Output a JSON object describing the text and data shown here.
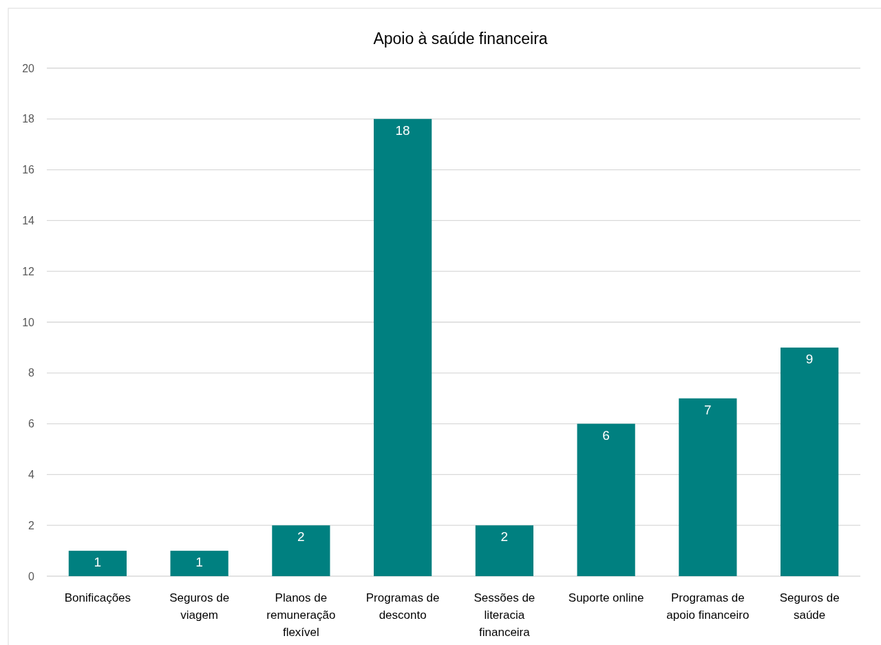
{
  "chart_data": {
    "type": "bar",
    "title": "Apoio à saúde financeira",
    "categories": [
      "Bonificações",
      "Seguros de viagem",
      "Planos de remuneração flexível",
      "Programas de desconto",
      "Sessões de literacia financeira",
      "Suporte online",
      "Programas de apoio financeiro",
      "Seguros de saúde"
    ],
    "values": [
      1,
      1,
      2,
      18,
      2,
      6,
      7,
      9
    ],
    "color": "#008080",
    "ylim": [
      0,
      20
    ],
    "yticks": [
      0,
      2,
      4,
      6,
      8,
      10,
      12,
      14,
      16,
      18,
      20
    ],
    "grid": "y",
    "data_labels": true
  }
}
